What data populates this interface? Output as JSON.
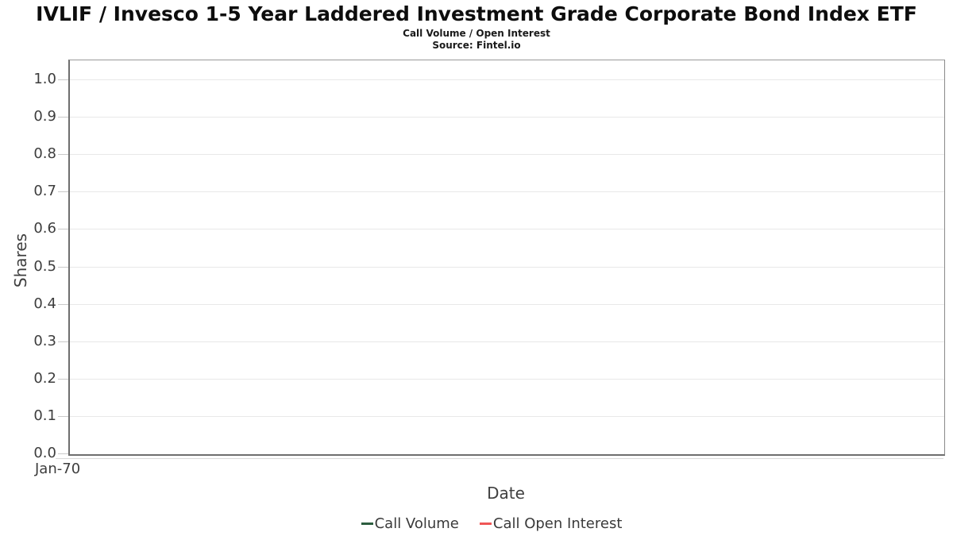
{
  "header": {
    "title": "IVLIF / Invesco 1-5 Year Laddered Investment Grade Corporate Bond Index ETF",
    "subtitle": "Call Volume / Open Interest",
    "source": "Source: Fintel.io"
  },
  "chart_data": {
    "type": "line",
    "title": "IVLIF / Invesco 1-5 Year Laddered Investment Grade Corporate Bond Index ETF",
    "subtitle": "Call Volume / Open Interest",
    "source": "Source: Fintel.io",
    "xlabel": "Date",
    "ylabel": "Shares",
    "ylim": [
      0.0,
      1.0
    ],
    "ytick_step": 0.1,
    "yticks": [
      "1.0",
      "0.9",
      "0.8",
      "0.7",
      "0.6",
      "0.5",
      "0.4",
      "0.3",
      "0.2",
      "0.1",
      "0.0"
    ],
    "xticks": [
      "Jan-70"
    ],
    "grid": true,
    "legend_position": "bottom",
    "series": [
      {
        "name": "Call Volume",
        "color": "#2c5d3f",
        "x": [],
        "values": []
      },
      {
        "name": "Call Open Interest",
        "color": "#ef5656",
        "x": [],
        "values": []
      }
    ]
  },
  "style_colors": {
    "grid": "#e8e8e8",
    "axis_border": "#6e6e6e",
    "tick": "#c9c9c9",
    "text": "#3d3d3d"
  }
}
